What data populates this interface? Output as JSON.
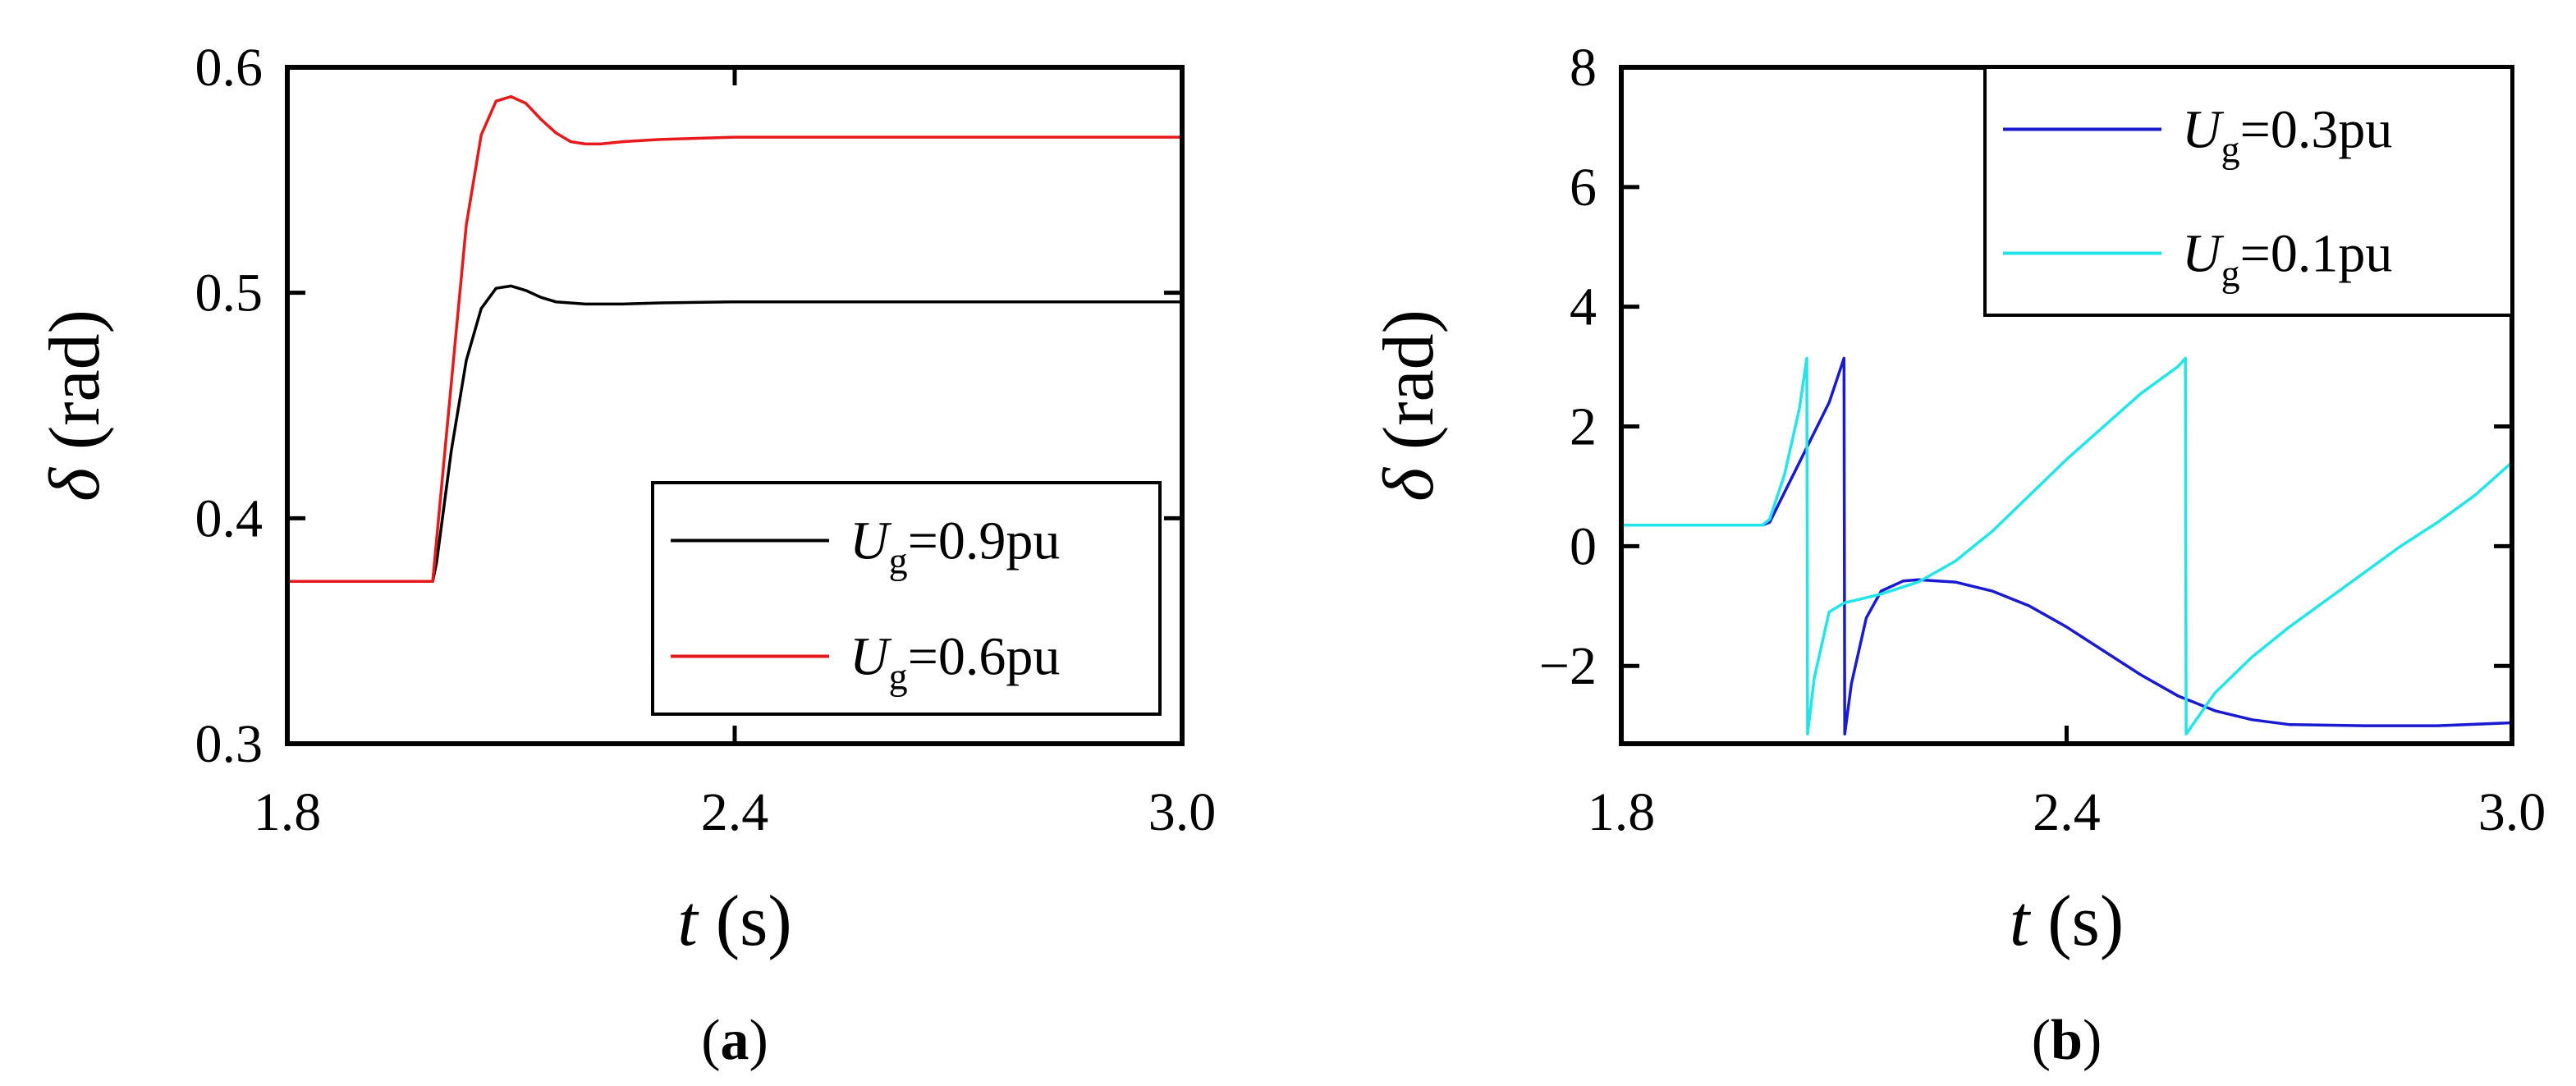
{
  "chart_data": [
    {
      "panel_label": "(a)",
      "type": "line",
      "xlabel_var": "t",
      "xlabel_unit": "(s)",
      "ylabel_var": "δ",
      "ylabel_unit": "(rad)",
      "xlim": [
        1.8,
        3.0
      ],
      "ylim": [
        0.3,
        0.6
      ],
      "xticks": [
        1.8,
        2.4,
        3.0
      ],
      "xtick_labels": [
        "1.8",
        "2.4",
        "3.0"
      ],
      "yticks": [
        0.3,
        0.4,
        0.5,
        0.6
      ],
      "ytick_labels": [
        "0.3",
        "0.4",
        "0.5",
        "0.6"
      ],
      "legend_position": "bottom-right",
      "series": [
        {
          "legend_var": "U",
          "legend_sub": "g",
          "legend_value": "=0.9pu",
          "color": "#000000",
          "x": [
            1.8,
            1.9,
            1.995,
            2.0,
            2.02,
            2.04,
            2.06,
            2.08,
            2.1,
            2.12,
            2.14,
            2.16,
            2.2,
            2.25,
            2.3,
            2.4,
            2.6,
            2.8,
            3.0
          ],
          "y": [
            0.372,
            0.372,
            0.372,
            0.38,
            0.43,
            0.47,
            0.493,
            0.502,
            0.503,
            0.501,
            0.498,
            0.496,
            0.495,
            0.495,
            0.4955,
            0.496,
            0.496,
            0.496,
            0.496
          ]
        },
        {
          "legend_var": "U",
          "legend_sub": "g",
          "legend_value": "=0.6pu",
          "color": "#e8191b",
          "x": [
            1.8,
            1.9,
            1.995,
            2.0,
            2.02,
            2.04,
            2.06,
            2.08,
            2.1,
            2.12,
            2.14,
            2.16,
            2.18,
            2.2,
            2.22,
            2.25,
            2.3,
            2.4,
            2.6,
            2.8,
            3.0
          ],
          "y": [
            0.372,
            0.372,
            0.372,
            0.39,
            0.46,
            0.53,
            0.57,
            0.585,
            0.587,
            0.584,
            0.577,
            0.571,
            0.567,
            0.566,
            0.566,
            0.567,
            0.568,
            0.569,
            0.569,
            0.569,
            0.569
          ]
        }
      ]
    },
    {
      "panel_label": "(b)",
      "type": "line",
      "xlabel_var": "t",
      "xlabel_unit": "(s)",
      "ylabel_var": "δ",
      "ylabel_unit": "(rad)",
      "xlim": [
        1.8,
        3.0
      ],
      "ylim": [
        -3.3,
        8
      ],
      "xticks": [
        1.8,
        2.4,
        3.0
      ],
      "xtick_labels": [
        "1.8",
        "2.4",
        "3.0"
      ],
      "yticks": [
        -2,
        0,
        2,
        4,
        6,
        8
      ],
      "ytick_labels": [
        "−2",
        "0",
        "2",
        "4",
        "6",
        "8"
      ],
      "legend_position": "top-right",
      "series": [
        {
          "legend_var": "U",
          "legend_sub": "g",
          "legend_value": "=0.3pu",
          "color": "#1a1ad0",
          "x": [
            1.8,
            1.9,
            1.99,
            2.0,
            2.02,
            2.04,
            2.06,
            2.08,
            2.1,
            2.101,
            2.11,
            2.13,
            2.15,
            2.18,
            2.2,
            2.25,
            2.3,
            2.35,
            2.4,
            2.45,
            2.5,
            2.55,
            2.6,
            2.65,
            2.7,
            2.8,
            2.9,
            3.0
          ],
          "y": [
            0.35,
            0.35,
            0.35,
            0.4,
            0.9,
            1.4,
            1.9,
            2.4,
            3.14,
            -3.14,
            -2.3,
            -1.2,
            -0.75,
            -0.58,
            -0.56,
            -0.6,
            -0.75,
            -1.0,
            -1.35,
            -1.75,
            -2.15,
            -2.5,
            -2.75,
            -2.9,
            -2.98,
            -3.0,
            -3.0,
            -2.95
          ]
        },
        {
          "legend_var": "U",
          "legend_sub": "g",
          "legend_value": "=0.1pu",
          "color": "#22e5e8",
          "x": [
            1.8,
            1.9,
            1.99,
            2.0,
            2.02,
            2.04,
            2.05,
            2.051,
            2.06,
            2.08,
            2.1,
            2.15,
            2.2,
            2.25,
            2.3,
            2.35,
            2.4,
            2.45,
            2.5,
            2.55,
            2.56,
            2.561,
            2.6,
            2.65,
            2.7,
            2.75,
            2.8,
            2.85,
            2.9,
            2.95,
            3.0
          ],
          "y": [
            0.35,
            0.35,
            0.35,
            0.45,
            1.2,
            2.3,
            3.14,
            -3.14,
            -2.2,
            -1.1,
            -0.95,
            -0.8,
            -0.6,
            -0.25,
            0.25,
            0.85,
            1.45,
            2.0,
            2.55,
            3.0,
            3.14,
            -3.14,
            -2.45,
            -1.85,
            -1.35,
            -0.9,
            -0.45,
            0.0,
            0.4,
            0.85,
            1.4
          ]
        }
      ]
    }
  ]
}
